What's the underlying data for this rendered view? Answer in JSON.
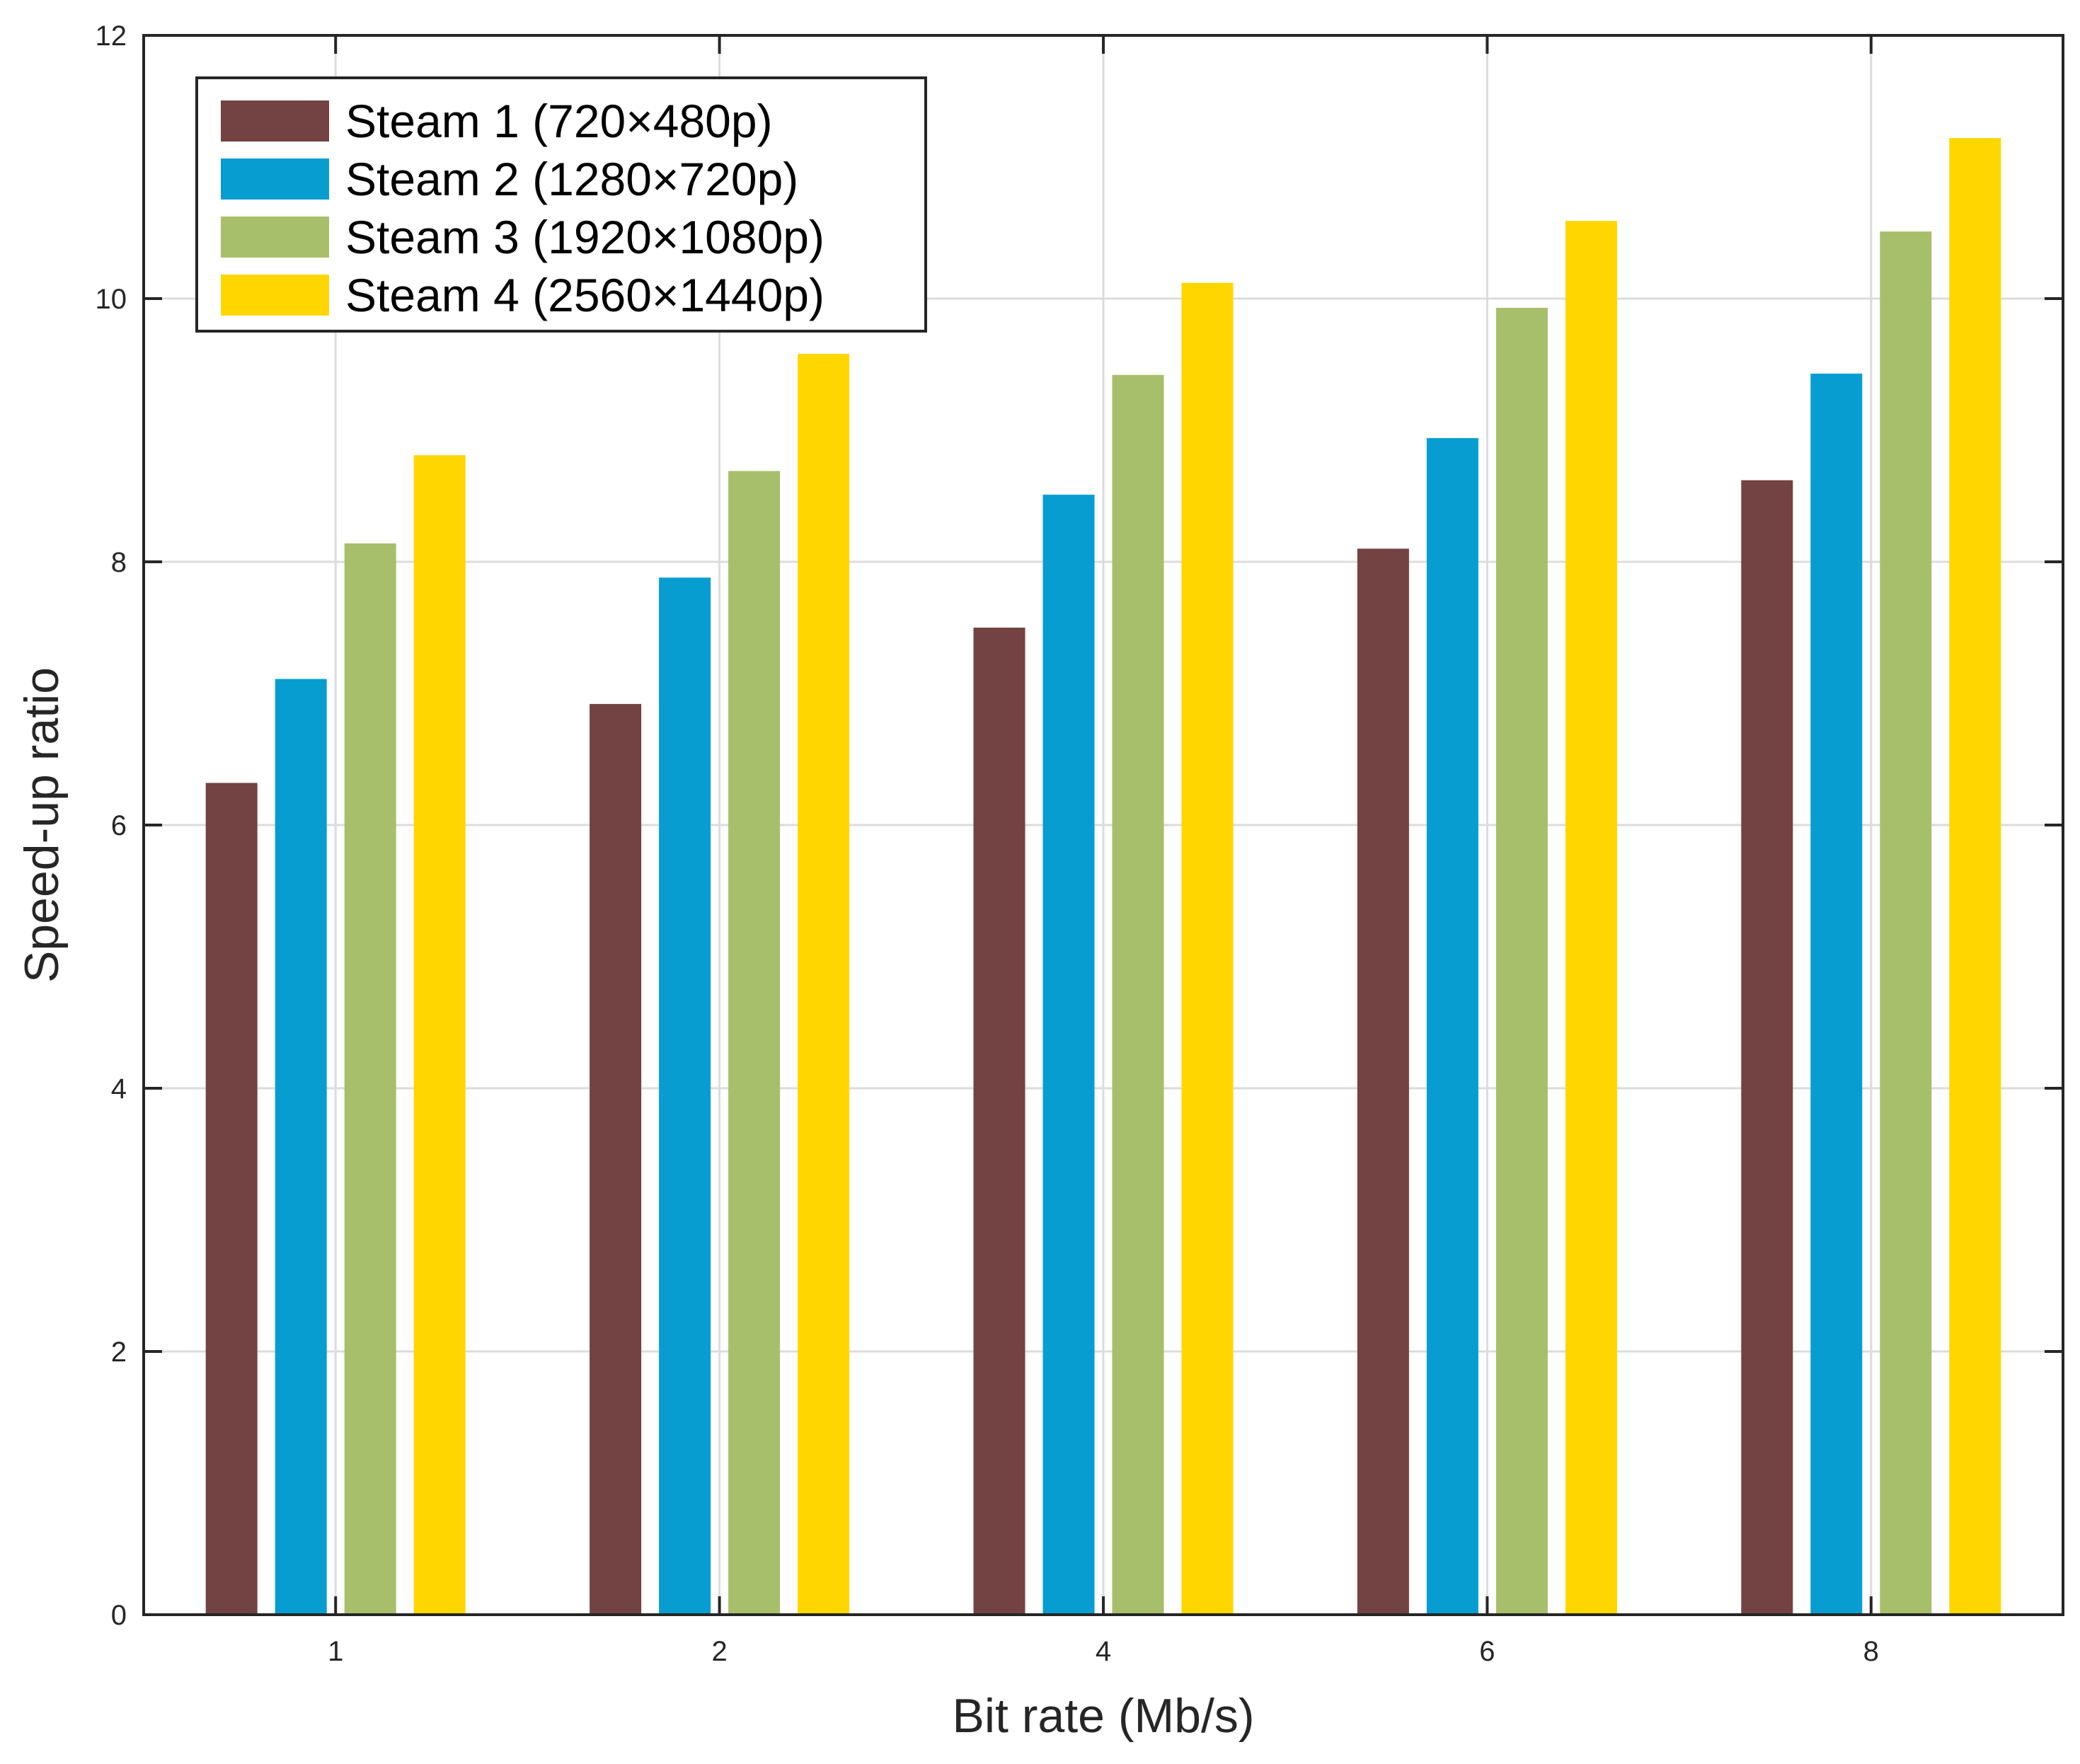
{
  "chart_data": {
    "type": "bar",
    "title": "",
    "xlabel": "Bit rate (Mb/s)",
    "ylabel": "Speed-up ratio",
    "categories": [
      "1",
      "2",
      "4",
      "6",
      "8"
    ],
    "ylim": [
      0,
      12
    ],
    "yticks": [
      "0",
      "2",
      "4",
      "6",
      "8",
      "10",
      "12"
    ],
    "grid": true,
    "legend_position": "top-left",
    "series": [
      {
        "name": "Steam 1 (720×480p)",
        "color": "#734242",
        "values": [
          6.32,
          6.92,
          7.5,
          8.1,
          8.62
        ]
      },
      {
        "name": "Steam 2 (1280×720p)",
        "color": "#079dd0",
        "values": [
          7.11,
          7.88,
          8.51,
          8.94,
          9.43
        ]
      },
      {
        "name": "Steam 3 (1920×1080p)",
        "color": "#a7bf6a",
        "values": [
          8.14,
          8.69,
          9.42,
          9.93,
          10.51
        ]
      },
      {
        "name": "Steam 4 (2560×1440p)",
        "color": "#ffd600",
        "values": [
          8.81,
          9.58,
          10.12,
          10.59,
          11.22
        ]
      }
    ]
  }
}
